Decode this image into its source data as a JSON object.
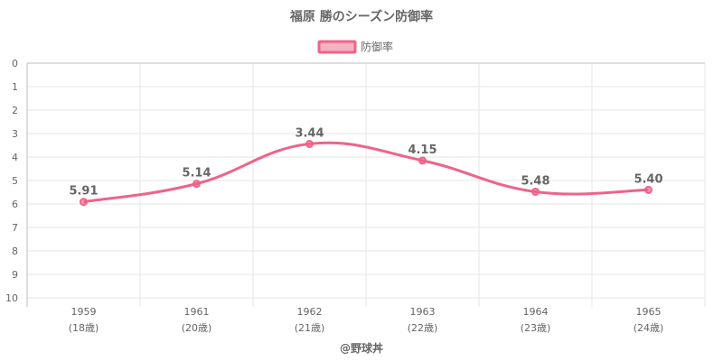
{
  "chart_data": {
    "type": "line",
    "title": "福原 勝のシーズン防御率",
    "categories": [
      "1959",
      "1961",
      "1962",
      "1963",
      "1964",
      "1965"
    ],
    "category_sublabels": [
      "(18歳)",
      "(20歳)",
      "(21歳)",
      "(22歳)",
      "(23歳)",
      "(24歳)"
    ],
    "series": [
      {
        "name": "防御率",
        "values": [
          5.91,
          5.14,
          3.44,
          4.15,
          5.48,
          5.4
        ],
        "color": "#f06388"
      }
    ],
    "data_labels": [
      "5.91",
      "5.14",
      "3.44",
      "4.15",
      "5.48",
      "5.40"
    ],
    "ylim": [
      0,
      10
    ],
    "y_reversed": true,
    "y_ticks": [
      "0",
      "1",
      "2",
      "3",
      "4",
      "5",
      "6",
      "7",
      "8",
      "9",
      "10"
    ],
    "grid": true,
    "legend_position": "top-center"
  },
  "footer": "@野球丼"
}
